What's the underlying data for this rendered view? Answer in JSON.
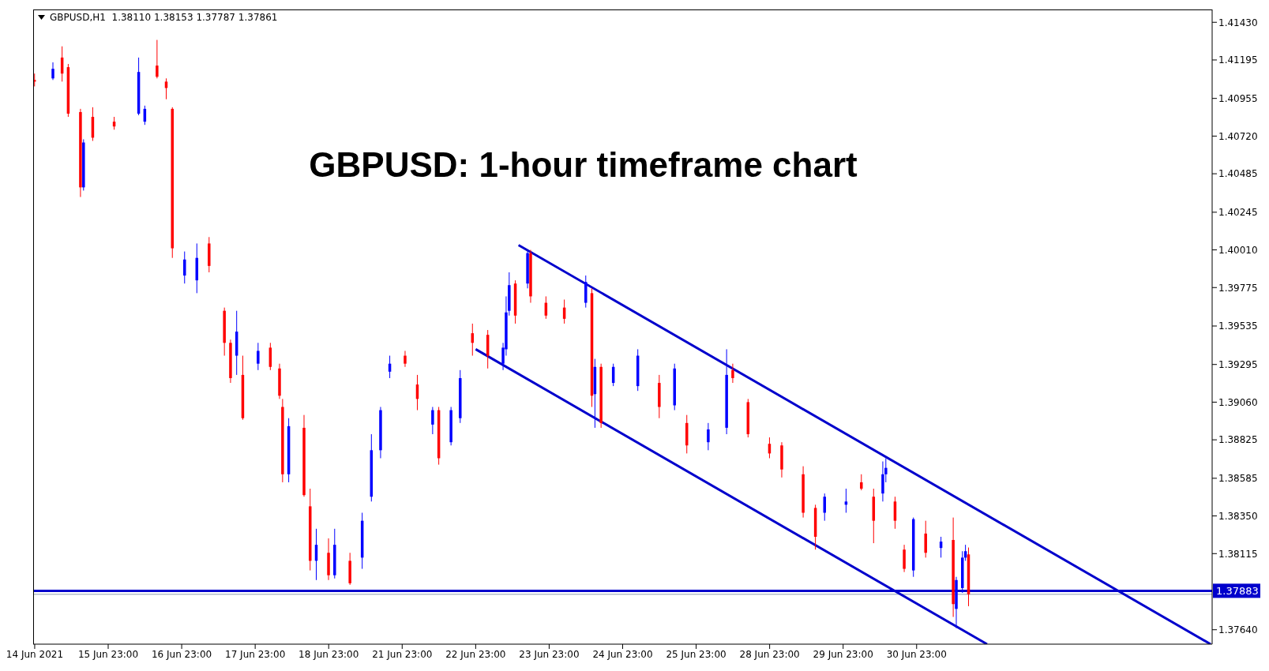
{
  "chart_data": {
    "type": "candlestick",
    "title": "GBPUSD: 1-hour timeframe chart",
    "subtitle": "GBPUSD,H1  1.38110 1.38153 1.37787 1.37861",
    "categories": [
      "14 Jun 2021",
      null,
      null,
      null,
      null,
      null,
      null,
      null,
      null,
      null,
      null,
      null,
      null,
      null,
      null,
      null,
      null,
      null,
      null,
      null,
      null,
      null,
      null,
      null,
      "15 Jun 23:00",
      null,
      null,
      null,
      null,
      null,
      null,
      null,
      null,
      null,
      null,
      null,
      null,
      null,
      null,
      null,
      null,
      null,
      null,
      null,
      null,
      null,
      null,
      null,
      "16 Jun 23:00",
      null,
      null,
      null,
      null,
      null,
      null,
      null,
      null,
      null,
      null,
      null,
      null,
      null,
      null,
      null,
      null,
      null,
      null,
      null,
      null,
      null,
      null,
      null,
      "17 Jun 23:00",
      null,
      null,
      null,
      null,
      null,
      null,
      null,
      null,
      null,
      null,
      null,
      null,
      null,
      null,
      null,
      null,
      null,
      null,
      null,
      null,
      null,
      null,
      null,
      "18 Jun 23:00",
      null,
      null,
      null,
      null,
      null,
      null,
      null,
      null,
      null,
      null,
      null,
      null,
      null,
      null,
      null,
      null,
      null,
      null,
      null,
      null,
      null,
      null,
      null,
      "21 Jun 23:00",
      null,
      null,
      null,
      null,
      null,
      null,
      null,
      null,
      null,
      null,
      null,
      null,
      null,
      null,
      null,
      null,
      null,
      null,
      null,
      null,
      null,
      null,
      null,
      "22 Jun 23:00",
      null,
      null,
      null,
      null,
      null,
      null,
      null,
      null,
      null,
      null,
      null,
      null,
      null,
      null,
      null,
      null,
      null,
      null,
      null,
      null,
      null,
      null,
      null,
      "23 Jun 23:00",
      null,
      null,
      null,
      null,
      null,
      null,
      null,
      null,
      null,
      null,
      null,
      null,
      null,
      null,
      null,
      null,
      null,
      null,
      null,
      null,
      null,
      null,
      null,
      "24 Jun 23:00",
      null,
      null,
      null,
      null,
      null,
      null,
      null,
      null,
      null,
      null,
      null,
      null,
      null,
      null,
      null,
      null,
      null,
      null,
      null,
      null,
      null,
      null,
      null,
      "25 Jun 23:00",
      null,
      null,
      null,
      null,
      null,
      null,
      null,
      null,
      null,
      null,
      null,
      null,
      null,
      null,
      null,
      null,
      null,
      null,
      null,
      null,
      null,
      null,
      null,
      "28 Jun 23:00",
      null,
      null,
      null,
      null,
      null,
      null,
      null,
      null,
      null,
      null,
      null,
      null,
      null,
      null,
      null,
      null,
      null,
      null,
      null,
      null,
      null,
      null,
      null,
      "29 Jun 23:00",
      null,
      null,
      null,
      null,
      null,
      null,
      null,
      null,
      null,
      null,
      null,
      null,
      null,
      null,
      null,
      null,
      null,
      null,
      null,
      null,
      null,
      null,
      null,
      "30 Jun 23:00",
      null,
      null,
      null,
      null,
      null,
      null,
      null,
      null,
      null,
      null,
      null,
      null,
      null,
      null,
      null,
      null,
      null,
      null,
      null,
      null,
      null,
      null,
      null,
      null,
      null,
      null,
      null,
      null,
      null,
      null,
      null,
      null,
      null,
      null,
      null,
      null,
      null,
      null,
      null,
      null,
      null,
      null,
      null,
      null,
      null,
      null,
      null,
      null,
      null,
      null,
      null,
      null,
      null,
      null,
      null,
      null,
      null,
      null,
      null,
      null,
      null,
      null,
      null,
      null,
      null,
      null,
      null,
      null,
      null,
      null,
      null,
      null,
      null,
      null,
      null,
      null,
      null,
      null,
      null,
      null,
      null,
      null,
      null,
      null,
      null,
      null,
      null,
      null,
      null,
      null,
      null,
      null,
      null,
      null,
      null,
      null
    ],
    "ylim": [
      1.3755,
      1.4151
    ],
    "yticks": [
      {
        "value": 1.3764,
        "label": "1.37640"
      },
      {
        "value": 1.38115,
        "label": "1.38115"
      },
      {
        "value": 1.3835,
        "label": "1.38350"
      },
      {
        "value": 1.38585,
        "label": "1.38585"
      },
      {
        "value": 1.38825,
        "label": "1.38825"
      },
      {
        "value": 1.3906,
        "label": "1.39060"
      },
      {
        "value": 1.39295,
        "label": "1.39295"
      },
      {
        "value": 1.39535,
        "label": "1.39535"
      },
      {
        "value": 1.39775,
        "label": "1.39775"
      },
      {
        "value": 1.4001,
        "label": "1.40010"
      },
      {
        "value": 1.40245,
        "label": "1.40245"
      },
      {
        "value": 1.40485,
        "label": "1.40485"
      },
      {
        "value": 1.4072,
        "label": "1.40720"
      },
      {
        "value": 1.40955,
        "label": "1.40955"
      },
      {
        "value": 1.41195,
        "label": "1.41195"
      },
      {
        "value": 1.4143,
        "label": "1.41430"
      }
    ],
    "ref_lines": [
      {
        "axis": "y",
        "value": 1.37883,
        "label": "1.37883",
        "color": "#0000cc"
      },
      {
        "axis": "y",
        "value": 1.37861,
        "color": "#8c9cb0"
      }
    ],
    "series": [
      {
        "type": "candlestick",
        "color": "#0000ff",
        "ohlc": [
          null,
          null,
          null,
          null,
          null,
          null,
          [
            1.4108,
            1.4118,
            1.4107,
            1.4114
          ],
          null,
          null,
          null,
          null,
          null,
          null,
          null,
          null,
          null,
          [
            1.404,
            1.407,
            1.4038,
            1.4068
          ],
          null,
          null,
          null,
          null,
          null,
          null,
          null,
          null,
          null,
          null,
          null,
          null,
          null,
          null,
          null,
          null,
          null,
          [
            1.4086,
            1.4121,
            1.4085,
            1.4112
          ],
          null,
          [
            1.4081,
            1.4091,
            1.4079,
            1.4089
          ],
          null,
          null,
          null,
          null,
          null,
          null,
          null,
          null,
          null,
          null,
          null,
          null,
          [
            1.3985,
            1.4,
            1.398,
            1.3995
          ],
          null,
          null,
          null,
          [
            1.3982,
            1.4005,
            1.3974,
            1.3996
          ],
          null,
          null,
          null,
          null,
          null,
          null,
          null,
          null,
          null,
          null,
          null,
          null,
          [
            1.3935,
            1.3963,
            1.3923,
            1.395
          ],
          null,
          null,
          null,
          null,
          null,
          null,
          [
            1.393,
            1.3943,
            1.3926,
            1.3938
          ],
          null,
          null,
          null,
          null,
          null,
          null,
          null,
          null,
          null,
          [
            1.3861,
            1.3896,
            1.3856,
            1.3891
          ],
          null,
          null,
          null,
          null,
          null,
          null,
          null,
          null,
          [
            1.3807,
            1.3827,
            1.3795,
            1.3817
          ],
          null,
          null,
          null,
          null,
          null,
          [
            1.3798,
            1.3827,
            1.3796,
            1.3817
          ],
          null,
          null,
          null,
          null,
          null,
          null,
          null,
          null,
          [
            1.3809,
            1.3837,
            1.3802,
            1.3832
          ],
          null,
          null,
          [
            1.3847,
            1.3886,
            1.3844,
            1.3876
          ],
          null,
          null,
          [
            1.3876,
            1.3903,
            1.3871,
            1.3901
          ],
          null,
          null,
          [
            1.3925,
            1.3935,
            1.3921,
            1.393
          ],
          null,
          null,
          null,
          null,
          null,
          null,
          null,
          null,
          null,
          null,
          null,
          null,
          null,
          [
            1.3892,
            1.3903,
            1.3886,
            1.3901
          ],
          null,
          null,
          null,
          null,
          null,
          [
            1.3881,
            1.3903,
            1.3879,
            1.3901
          ],
          null,
          null,
          [
            1.3896,
            1.3926,
            1.3893,
            1.3921
          ],
          null,
          null,
          null,
          null,
          null,
          null,
          null,
          null,
          null,
          null,
          null,
          null,
          null,
          [
            1.393,
            1.3943,
            1.3926,
            1.394
          ],
          [
            1.3939,
            1.3972,
            1.3935,
            1.3962
          ],
          [
            1.3963,
            1.3987,
            1.396,
            1.3979
          ],
          null,
          null,
          null,
          null,
          null,
          [
            1.398,
            1.4001,
            1.3977,
            1.3999
          ],
          null,
          null,
          null,
          null,
          null,
          null,
          null,
          null,
          null,
          null,
          null,
          null,
          null,
          null,
          null,
          null,
          null,
          null,
          [
            1.3968,
            1.3985,
            1.3965,
            1.3981
          ],
          null,
          null,
          [
            1.3911,
            1.3933,
            1.389,
            1.3928
          ],
          null,
          null,
          null,
          null,
          null,
          [
            1.3918,
            1.393,
            1.3916,
            1.3928
          ],
          null,
          null,
          null,
          null,
          null,
          null,
          null,
          [
            1.3916,
            1.3939,
            1.3913,
            1.3935
          ],
          null,
          null,
          null,
          null,
          null,
          null,
          null,
          null,
          null,
          null,
          null,
          [
            1.3904,
            1.393,
            1.3901,
            1.3927
          ],
          null,
          null,
          null,
          null,
          null,
          null,
          null,
          null,
          null,
          null,
          [
            1.3881,
            1.3893,
            1.3876,
            1.3889
          ],
          null,
          null,
          null,
          null,
          null,
          [
            1.389,
            1.3939,
            1.3886,
            1.3923
          ],
          null,
          null,
          null,
          null,
          null,
          null,
          null,
          null,
          null,
          null,
          null,
          null,
          null,
          null,
          null,
          null,
          null,
          null,
          null,
          null,
          null,
          null,
          null,
          null,
          null,
          null,
          null,
          null,
          null,
          null,
          null,
          [
            1.3837,
            1.3849,
            1.3832,
            1.3847
          ],
          null,
          null,
          null,
          null,
          null,
          null,
          [
            1.3842,
            1.3852,
            1.3837,
            1.3844
          ],
          null,
          null,
          null,
          null,
          null,
          null,
          null,
          null,
          null,
          null,
          null,
          [
            1.3849,
            1.3869,
            1.3844,
            1.3861
          ],
          [
            1.3861,
            1.3871,
            1.3856,
            1.3865
          ],
          null,
          null,
          null,
          null,
          null,
          null,
          null,
          null,
          [
            1.3801,
            1.3834,
            1.3797,
            1.3833
          ],
          null,
          null,
          null,
          null,
          null,
          null,
          null,
          null,
          [
            1.3815,
            1.3822,
            1.3809,
            1.3819
          ],
          null,
          null,
          null,
          null,
          [
            1.3777,
            1.3797,
            1.3765,
            1.3795
          ],
          null,
          [
            1.379,
            1.3813,
            1.3787,
            1.3809
          ],
          [
            1.3809,
            1.3817,
            1.3807,
            1.3813
          ],
          null,
          null,
          null,
          null,
          null,
          null,
          null,
          null,
          null,
          null,
          null,
          null,
          null,
          null,
          null,
          null,
          null,
          null,
          null,
          null,
          null,
          null,
          null,
          null,
          null,
          null,
          null,
          null,
          null,
          null,
          null,
          null,
          null,
          null,
          null,
          null,
          null,
          null,
          null,
          null,
          null,
          null,
          null,
          null,
          null,
          null,
          null,
          null,
          null,
          null,
          null,
          null,
          null,
          null,
          null,
          null,
          null,
          null,
          null,
          null,
          null,
          null,
          null,
          null,
          null,
          null,
          null,
          null,
          null,
          null,
          null,
          null,
          null,
          null,
          null,
          null,
          null,
          null,
          null,
          null
        ]
      },
      {
        "type": "candlestick",
        "color": "#ff0000",
        "ohlc": [
          [
            1.4107,
            1.4111,
            1.4103,
            1.4106
          ],
          null,
          null,
          null,
          null,
          null,
          null,
          null,
          null,
          [
            1.4121,
            1.4128,
            1.4106,
            1.4111
          ],
          null,
          [
            1.4115,
            1.4117,
            1.4084,
            1.4086
          ],
          null,
          null,
          null,
          [
            1.4087,
            1.4089,
            1.4034,
            1.404
          ],
          null,
          null,
          null,
          [
            1.4084,
            1.409,
            1.4069,
            1.4071
          ],
          null,
          null,
          null,
          null,
          null,
          null,
          [
            1.4081,
            1.4084,
            1.4076,
            1.4078
          ],
          null,
          null,
          null,
          null,
          null,
          null,
          null,
          null,
          null,
          null,
          null,
          null,
          null,
          [
            1.4116,
            1.4132,
            1.4108,
            1.4109
          ],
          null,
          null,
          [
            1.4106,
            1.4108,
            1.4095,
            1.4102
          ],
          null,
          [
            1.4089,
            1.409,
            1.3996,
            1.4002
          ],
          null,
          null,
          null,
          null,
          null,
          null,
          null,
          null,
          null,
          null,
          null,
          [
            1.4005,
            1.4009,
            1.3987,
            1.3991
          ],
          null,
          null,
          null,
          null,
          [
            1.3963,
            1.3965,
            1.3935,
            1.3943
          ],
          null,
          [
            1.3943,
            1.3945,
            1.3918,
            1.3921
          ],
          null,
          null,
          null,
          [
            1.3923,
            1.3935,
            1.3895,
            1.3896
          ],
          null,
          null,
          null,
          null,
          null,
          null,
          null,
          null,
          [
            1.394,
            1.3943,
            1.3926,
            1.3928
          ],
          null,
          null,
          [
            1.3927,
            1.393,
            1.3908,
            1.391
          ],
          [
            1.3903,
            1.3908,
            1.3856,
            1.3861
          ],
          null,
          null,
          null,
          null,
          null,
          null,
          [
            1.389,
            1.3898,
            1.3847,
            1.3848
          ],
          null,
          [
            1.3841,
            1.3852,
            1.3801,
            1.3807
          ],
          null,
          null,
          null,
          null,
          null,
          [
            1.3812,
            1.3821,
            1.3795,
            1.3798
          ],
          null,
          null,
          null,
          null,
          null,
          null,
          [
            1.3807,
            1.3812,
            1.3792,
            1.3793
          ],
          null,
          null,
          null,
          null,
          null,
          null,
          null,
          null,
          null,
          null,
          null,
          null,
          null,
          null,
          null,
          null,
          null,
          [
            1.3935,
            1.3938,
            1.3928,
            1.393
          ],
          null,
          null,
          null,
          [
            1.3917,
            1.3923,
            1.3901,
            1.3908
          ],
          null,
          null,
          null,
          null,
          null,
          null,
          [
            1.3901,
            1.3903,
            1.3867,
            1.3871
          ],
          null,
          null,
          null,
          null,
          null,
          null,
          null,
          null,
          null,
          null,
          [
            1.3949,
            1.3955,
            1.3935,
            1.3943
          ],
          null,
          null,
          null,
          null,
          [
            1.3948,
            1.3951,
            1.3927,
            1.3935
          ],
          null,
          null,
          null,
          null,
          null,
          null,
          null,
          null,
          [
            1.398,
            1.3982,
            1.3955,
            1.396
          ],
          null,
          null,
          null,
          null,
          [
            1.3999,
            1.4001,
            1.3968,
            1.3972
          ],
          null,
          null,
          null,
          null,
          [
            1.3968,
            1.3972,
            1.3958,
            1.396
          ],
          null,
          null,
          null,
          null,
          null,
          [
            1.3965,
            1.397,
            1.3955,
            1.3958
          ],
          null,
          null,
          null,
          null,
          null,
          null,
          null,
          null,
          [
            1.3974,
            1.3977,
            1.3903,
            1.391
          ],
          null,
          null,
          [
            1.3928,
            1.393,
            1.389,
            1.3893
          ],
          null,
          null,
          null,
          null,
          null,
          null,
          null,
          null,
          null,
          null,
          null,
          null,
          null,
          null,
          null,
          null,
          null,
          null,
          [
            1.3918,
            1.3923,
            1.3896,
            1.3903
          ],
          null,
          null,
          null,
          null,
          null,
          null,
          null,
          null,
          [
            1.3893,
            1.3898,
            1.3874,
            1.3879
          ],
          null,
          null,
          null,
          null,
          null,
          null,
          null,
          null,
          null,
          null,
          null,
          null,
          null,
          null,
          [
            1.3926,
            1.393,
            1.3918,
            1.3921
          ],
          null,
          null,
          null,
          null,
          [
            1.3906,
            1.3908,
            1.3884,
            1.3886
          ],
          null,
          null,
          null,
          null,
          null,
          null,
          [
            1.388,
            1.3884,
            1.3871,
            1.3874
          ],
          null,
          null,
          null,
          [
            1.3879,
            1.3881,
            1.3859,
            1.3864
          ],
          null,
          null,
          null,
          null,
          null,
          null,
          [
            1.3861,
            1.3866,
            1.3834,
            1.3837
          ],
          null,
          null,
          null,
          [
            1.384,
            1.3842,
            1.3814,
            1.3822
          ],
          null,
          null,
          null,
          null,
          null,
          null,
          null,
          null,
          null,
          null,
          null,
          null,
          null,
          null,
          [
            1.3856,
            1.3861,
            1.3851,
            1.3852
          ],
          null,
          null,
          null,
          [
            1.3847,
            1.3852,
            1.3818,
            1.3832
          ],
          null,
          null,
          null,
          null,
          null,
          null,
          [
            1.3844,
            1.3847,
            1.3827,
            1.3832
          ],
          null,
          null,
          [
            1.3814,
            1.3817,
            1.38,
            1.3802
          ],
          null,
          null,
          null,
          null,
          null,
          null,
          [
            1.3824,
            1.3832,
            1.3809,
            1.3812
          ],
          null,
          null,
          null,
          null,
          null,
          null,
          null,
          null,
          [
            1.382,
            1.3834,
            1.3772,
            1.378
          ],
          null,
          null,
          null,
          null,
          [
            1.3811,
            1.38153,
            1.37787,
            1.37861
          ],
          null,
          null,
          null,
          null,
          null,
          null,
          null,
          null,
          null,
          null,
          null,
          null,
          null,
          null,
          null,
          null,
          null,
          null,
          null,
          null,
          null,
          null,
          null,
          null,
          null,
          null,
          null,
          null,
          null,
          null,
          null,
          null,
          null,
          null,
          null,
          null,
          null,
          null,
          null,
          null,
          null,
          null,
          null,
          null,
          null,
          null,
          null,
          null,
          null,
          null,
          null,
          null,
          null,
          null,
          null,
          null,
          null,
          null,
          null,
          null,
          null,
          null,
          null,
          null,
          null,
          null,
          null,
          null,
          null,
          null,
          null,
          null,
          null,
          null,
          null,
          null,
          null,
          null,
          null
        ]
      },
      {
        "type": "line",
        "color": "#0000cc",
        "values": [
          null,
          null,
          null,
          null,
          null,
          null,
          null,
          null,
          null,
          null,
          null,
          null,
          null,
          null,
          null,
          null,
          null,
          null,
          null,
          null,
          null,
          null,
          null,
          null,
          null,
          null,
          null,
          null,
          null,
          null,
          null,
          null,
          null,
          null,
          null,
          null,
          null,
          null,
          null,
          null,
          null,
          null,
          null,
          null,
          null,
          null,
          null,
          null,
          null,
          null,
          null,
          null,
          null,
          null,
          null,
          null,
          null,
          null,
          null,
          null,
          null,
          null,
          null,
          null,
          null,
          null,
          null,
          null,
          null,
          null,
          null,
          null,
          null,
          null,
          null,
          null,
          null,
          null,
          null,
          null,
          null,
          null,
          null,
          null,
          null,
          null,
          null,
          null,
          null,
          null,
          null,
          null,
          null,
          null,
          null,
          null,
          null,
          null,
          null,
          null,
          null,
          null,
          null,
          null,
          null,
          null,
          null,
          null,
          null,
          null,
          null,
          null,
          null,
          null,
          null,
          null,
          null,
          null,
          null,
          null,
          null,
          null,
          null,
          null,
          null,
          null,
          null,
          null,
          null,
          null,
          null,
          null,
          null,
          null,
          null,
          null,
          null,
          null,
          null,
          null,
          null,
          null,
          null,
          null,
          null,
          null,
          null,
          null,
          null,
          null,
          null,
          null,
          null,
          null,
          null,
          null,
          null,
          null,
          1.4004,
          null,
          null,
          null,
          null,
          null,
          null,
          null,
          null,
          null,
          null,
          null,
          null,
          null,
          null,
          null,
          null,
          null,
          null,
          null,
          null,
          null,
          null,
          null,
          null,
          null,
          null,
          null,
          null,
          null,
          null,
          null,
          null,
          null,
          null,
          null,
          null,
          null,
          null,
          null,
          null,
          null,
          null,
          null,
          null,
          null,
          null,
          null,
          null,
          null,
          null,
          null,
          null,
          null,
          null,
          null,
          null,
          null,
          null,
          null,
          null,
          null,
          null,
          null,
          null,
          null,
          null,
          null,
          null,
          null,
          null,
          null,
          null,
          null,
          null,
          null,
          null,
          null,
          null,
          null,
          null,
          null,
          null,
          null,
          null,
          null,
          null,
          null,
          null,
          null,
          null,
          null,
          null,
          null,
          null,
          null,
          null,
          null,
          null,
          null,
          null,
          null,
          null,
          null,
          null,
          null,
          null,
          null,
          null,
          null,
          null,
          null,
          null,
          null,
          null,
          null,
          null,
          null,
          null,
          null,
          null,
          null,
          null,
          null,
          null,
          null,
          null,
          null,
          null,
          null,
          null,
          null,
          null,
          null,
          null,
          null,
          null,
          null,
          null,
          null,
          null,
          null,
          null,
          null,
          null,
          null,
          null,
          null,
          null,
          null,
          null,
          null,
          null,
          null,
          null,
          null,
          null,
          null,
          null,
          null,
          null,
          null,
          null,
          null,
          null,
          null,
          null,
          null,
          null,
          null,
          null,
          null,
          null,
          null,
          null,
          null,
          null,
          null,
          null,
          null,
          null,
          null,
          null,
          null,
          null,
          null,
          null,
          null,
          null,
          null,
          null,
          null,
          null,
          null,
          null,
          null,
          null,
          null,
          null,
          null,
          null,
          null,
          null,
          null,
          null,
          null,
          null,
          null,
          null,
          null,
          null,
          null,
          null,
          null,
          null,
          null,
          null,
          null,
          null,
          null,
          null,
          null,
          null,
          null,
          null,
          null,
          1.3755
        ]
      },
      {
        "type": "line",
        "color": "#0000cc",
        "values": [
          null,
          null,
          null,
          null,
          null,
          null,
          null,
          null,
          null,
          null,
          null,
          null,
          null,
          null,
          null,
          null,
          null,
          null,
          null,
          null,
          null,
          null,
          null,
          null,
          null,
          null,
          null,
          null,
          null,
          null,
          null,
          null,
          null,
          null,
          null,
          null,
          null,
          null,
          null,
          null,
          null,
          null,
          null,
          null,
          null,
          null,
          null,
          null,
          null,
          null,
          null,
          null,
          null,
          null,
          null,
          null,
          null,
          null,
          null,
          null,
          null,
          null,
          null,
          null,
          null,
          null,
          null,
          null,
          null,
          null,
          null,
          null,
          null,
          null,
          null,
          null,
          null,
          null,
          null,
          null,
          null,
          null,
          null,
          null,
          null,
          null,
          null,
          null,
          null,
          null,
          null,
          null,
          null,
          null,
          null,
          null,
          null,
          null,
          null,
          null,
          null,
          null,
          null,
          null,
          null,
          null,
          null,
          null,
          null,
          null,
          null,
          null,
          null,
          null,
          null,
          null,
          null,
          null,
          null,
          null,
          null,
          null,
          null,
          null,
          null,
          null,
          null,
          null,
          null,
          null,
          null,
          null,
          null,
          null,
          null,
          null,
          null,
          null,
          null,
          null,
          null,
          null,
          null,
          null,
          1.3939,
          null,
          null,
          null,
          null,
          null,
          null,
          null,
          null,
          null,
          null,
          null,
          null,
          null,
          null,
          null,
          null,
          null,
          null,
          null,
          null,
          null,
          null,
          null,
          null,
          null,
          null,
          null,
          null,
          null,
          null,
          null,
          null,
          null,
          null,
          null,
          null,
          null,
          null,
          null,
          null,
          null,
          null,
          null,
          null,
          null,
          null,
          null,
          null,
          null,
          null,
          null,
          null,
          null,
          null,
          null,
          null,
          null,
          null,
          null,
          null,
          null,
          null,
          null,
          null,
          null,
          null,
          null,
          null,
          null,
          null,
          null,
          null,
          null,
          null,
          null,
          null,
          null,
          null,
          null,
          null,
          null,
          null,
          null,
          null,
          null,
          null,
          null,
          null,
          null,
          null,
          null,
          null,
          null,
          null,
          null,
          null,
          null,
          null,
          null,
          null,
          null,
          null,
          null,
          null,
          null,
          null,
          null,
          null,
          null,
          null,
          null,
          null,
          null,
          null,
          null,
          null,
          null,
          null,
          null,
          null,
          null,
          null,
          null,
          null,
          null,
          null,
          null,
          null,
          null,
          null,
          null,
          null,
          null,
          null,
          null,
          null,
          null,
          null,
          null,
          null,
          null,
          null,
          null,
          null,
          null,
          null,
          null,
          null,
          null,
          null,
          null,
          null,
          null,
          null,
          null,
          null,
          null,
          null,
          null,
          null,
          null,
          null,
          null,
          null,
          null,
          null,
          1.3755,
          null,
          null,
          null,
          null,
          null,
          null,
          null,
          null,
          null,
          null,
          null,
          null,
          null,
          null,
          null,
          null,
          null,
          null,
          null,
          null,
          null,
          null,
          null,
          null,
          null,
          null,
          null,
          null,
          null,
          null,
          null,
          null,
          null,
          null,
          null,
          null,
          null,
          null,
          null,
          null,
          null,
          null,
          null,
          null,
          null,
          null,
          null,
          null,
          null,
          null,
          null,
          null,
          null,
          null,
          null,
          null,
          null,
          null,
          null,
          null,
          null,
          null,
          null,
          null,
          null,
          null,
          null,
          null,
          null,
          null,
          null,
          null,
          null
        ]
      }
    ]
  }
}
